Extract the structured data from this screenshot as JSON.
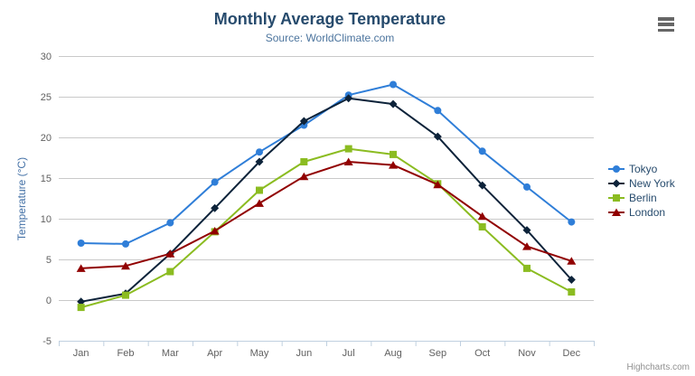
{
  "credit": {
    "label": "Highcharts.com"
  },
  "theme": {
    "title_color": "#274b6d",
    "subtitle_color": "#4d759e",
    "axis_label_color": "#606060",
    "axis_title_color": "#4572a7",
    "grid_color": "#c9c9c9",
    "axis_line_color": "#c0d0e0",
    "legend_text_color": "#274b6d",
    "menu_icon_color": "#666666",
    "credit_color": "#909090"
  },
  "chart_data": {
    "type": "line",
    "title": "Monthly Average Temperature",
    "subtitle": "Source: WorldClimate.com",
    "xlabel": "",
    "ylabel": "Temperature (°C)",
    "categories": [
      "Jan",
      "Feb",
      "Mar",
      "Apr",
      "May",
      "Jun",
      "Jul",
      "Aug",
      "Sep",
      "Oct",
      "Nov",
      "Dec"
    ],
    "ylim": [
      -5,
      30
    ],
    "ytick_step": 5,
    "yticks": [
      -5,
      0,
      5,
      10,
      15,
      20,
      25,
      30
    ],
    "grid": true,
    "legend_position": "right",
    "series": [
      {
        "name": "Tokyo",
        "color": "#2f7ed8",
        "marker": "circle",
        "values": [
          7.0,
          6.9,
          9.5,
          14.5,
          18.2,
          21.5,
          25.2,
          26.5,
          23.3,
          18.3,
          13.9,
          9.6
        ]
      },
      {
        "name": "New York",
        "color": "#0d233a",
        "marker": "diamond",
        "values": [
          -0.2,
          0.8,
          5.7,
          11.3,
          17.0,
          22.0,
          24.8,
          24.1,
          20.1,
          14.1,
          8.6,
          2.5
        ]
      },
      {
        "name": "Berlin",
        "color": "#8bbc21",
        "marker": "square",
        "values": [
          -0.9,
          0.6,
          3.5,
          8.4,
          13.5,
          17.0,
          18.6,
          17.9,
          14.3,
          9.0,
          3.9,
          1.0
        ]
      },
      {
        "name": "London",
        "color": "#910000",
        "marker": "triangle",
        "values": [
          3.9,
          4.2,
          5.7,
          8.5,
          11.9,
          15.2,
          17.0,
          16.6,
          14.2,
          10.3,
          6.6,
          4.8
        ]
      }
    ]
  }
}
